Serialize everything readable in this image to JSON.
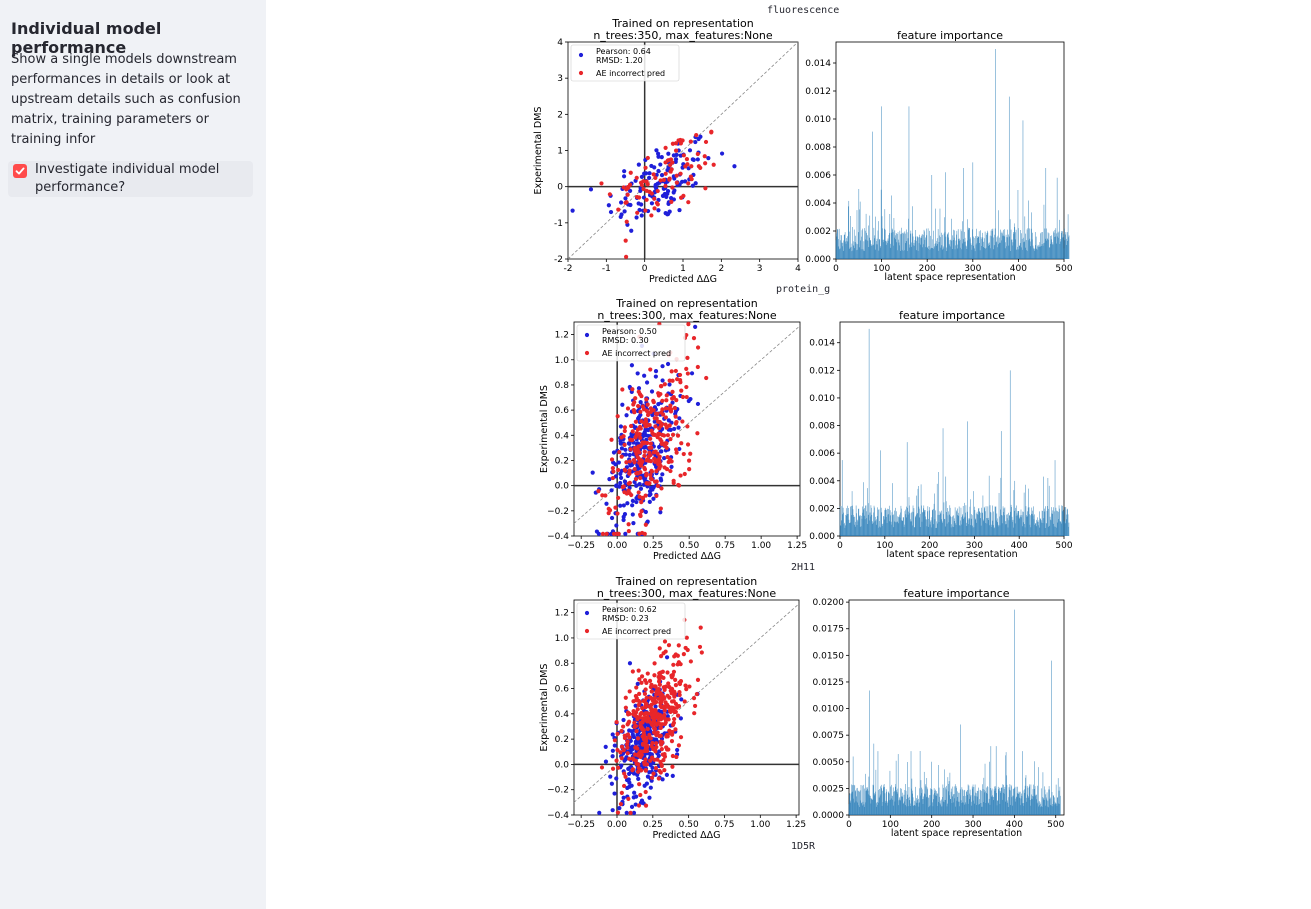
{
  "sidebar": {
    "title": "Individual model performance",
    "description": "Show a single models downstream performances in details or look at upstream details such as confusion matrix, training parameters or training infor",
    "checkbox": {
      "label": "Investigate individual model performance?",
      "checked": true
    }
  },
  "captions": [
    "fluorescence",
    "protein_g",
    "2H11",
    "1D5R"
  ],
  "colors": {
    "blue_points": "#1f1fd9",
    "red_points": "#e8262a",
    "bars": "#1f77b4",
    "accent": "#ff4b4b"
  },
  "chart_data": [
    {
      "type": "scatter",
      "title": "Trained on representation",
      "subtitle": "n_trees:350, max_features:None",
      "xlabel": "Predicted ΔΔG",
      "ylabel": "Experimental DMS",
      "xlim": [
        -2,
        4
      ],
      "ylim": [
        -2,
        4
      ],
      "xticks": [
        "-2",
        "-1",
        "0",
        "1",
        "2",
        "3",
        "4"
      ],
      "yticks": [
        "-2",
        "-1",
        "0",
        "1",
        "2",
        "3",
        "4"
      ],
      "legend": {
        "line1": "Pearson: 0.64",
        "line2": "RMSD: 1.20",
        "series": "AE incorrect pred",
        "placement": "top-left"
      },
      "blue_center": [
        0.4,
        0.1
      ],
      "blue_spread": [
        0.7,
        0.7
      ],
      "blue_count": 130,
      "red_center": [
        0.6,
        0.3
      ],
      "red_spread": [
        0.7,
        0.7
      ],
      "red_count": 90
    },
    {
      "type": "bar",
      "title": "feature importance",
      "xlabel": "latent space representation",
      "xlim": [
        0,
        500
      ],
      "ylim": [
        0,
        0.0155
      ],
      "xticks": [
        "0",
        "100",
        "200",
        "300",
        "400",
        "500"
      ],
      "yticks": [
        "0.000",
        "0.002",
        "0.004",
        "0.006",
        "0.008",
        "0.010",
        "0.012",
        "0.014"
      ],
      "peaks": [
        [
          50,
          0.005
        ],
        [
          80,
          0.0091
        ],
        [
          100,
          0.0109
        ],
        [
          160,
          0.0109
        ],
        [
          210,
          0.006
        ],
        [
          240,
          0.0062
        ],
        [
          280,
          0.0065
        ],
        [
          300,
          0.0069
        ],
        [
          350,
          0.015
        ],
        [
          380,
          0.0116
        ],
        [
          410,
          0.0099
        ],
        [
          460,
          0.0065
        ],
        [
          485,
          0.0058
        ]
      ]
    },
    {
      "type": "scatter",
      "title": "Trained on representation",
      "subtitle": "n_trees:300, max_features:None",
      "xlabel": "Predicted ΔΔG",
      "ylabel": "Experimental DMS",
      "xlim": [
        -0.3,
        1.27
      ],
      "ylim": [
        -0.4,
        1.3
      ],
      "xticks": [
        "−0.25",
        "0.00",
        "0.25",
        "0.50",
        "0.75",
        "1.00",
        "1.25"
      ],
      "yticks": [
        "−0.4",
        "−0.2",
        "0.0",
        "0.2",
        "0.4",
        "0.6",
        "0.8",
        "1.0",
        "1.2"
      ],
      "legend": {
        "line1": "Pearson: 0.50",
        "line2": "RMSD: 0.30",
        "series": "AE incorrect pred",
        "placement": "top-left"
      },
      "blue_center": [
        0.18,
        0.25
      ],
      "blue_spread": [
        0.12,
        0.35
      ],
      "blue_count": 300,
      "red_center": [
        0.25,
        0.35
      ],
      "red_spread": [
        0.15,
        0.38
      ],
      "red_count": 300
    },
    {
      "type": "bar",
      "title": "feature importance",
      "xlabel": "latent space representation",
      "xlim": [
        0,
        500
      ],
      "ylim": [
        0,
        0.0155
      ],
      "xticks": [
        "0",
        "100",
        "200",
        "300",
        "400",
        "500"
      ],
      "yticks": [
        "0.000",
        "0.002",
        "0.004",
        "0.006",
        "0.008",
        "0.010",
        "0.012",
        "0.014"
      ],
      "peaks": [
        [
          5,
          0.0055
        ],
        [
          65,
          0.015
        ],
        [
          90,
          0.0062
        ],
        [
          150,
          0.0068
        ],
        [
          230,
          0.0078
        ],
        [
          285,
          0.0083
        ],
        [
          360,
          0.0076
        ],
        [
          380,
          0.012
        ],
        [
          480,
          0.0055
        ]
      ]
    },
    {
      "type": "scatter",
      "title": "Trained on representation",
      "subtitle": "n_trees:300, max_features:None",
      "xlabel": "Predicted ΔΔG",
      "ylabel": "Experimental DMS",
      "xlim": [
        -0.3,
        1.27
      ],
      "ylim": [
        -0.4,
        1.3
      ],
      "xticks": [
        "−0.25",
        "0.00",
        "0.25",
        "0.50",
        "0.75",
        "1.00",
        "1.25"
      ],
      "yticks": [
        "−0.4",
        "−0.2",
        "0.0",
        "0.2",
        "0.4",
        "0.6",
        "0.8",
        "1.0",
        "1.2"
      ],
      "legend": {
        "line1": "Pearson: 0.62",
        "line2": "RMSD: 0.23",
        "series": "AE incorrect pred",
        "placement": "top-left"
      },
      "blue_center": [
        0.18,
        0.15
      ],
      "blue_spread": [
        0.1,
        0.25
      ],
      "blue_count": 300,
      "red_center": [
        0.25,
        0.35
      ],
      "red_spread": [
        0.12,
        0.28
      ],
      "red_count": 400
    },
    {
      "type": "bar",
      "title": "feature importance",
      "xlabel": "latent space representation",
      "xlim": [
        0,
        520
      ],
      "ylim": [
        0,
        0.0202
      ],
      "xticks": [
        "0",
        "100",
        "200",
        "300",
        "400",
        "500"
      ],
      "yticks": [
        "0.0000",
        "0.0025",
        "0.0050",
        "0.0075",
        "0.0100",
        "0.0125",
        "0.0150",
        "0.0175",
        "0.0200"
      ],
      "peaks": [
        [
          10,
          0.0055
        ],
        [
          50,
          0.0117
        ],
        [
          70,
          0.006
        ],
        [
          150,
          0.006
        ],
        [
          200,
          0.005
        ],
        [
          270,
          0.0085
        ],
        [
          340,
          0.005
        ],
        [
          400,
          0.0193
        ],
        [
          420,
          0.006
        ],
        [
          490,
          0.0145
        ]
      ]
    }
  ]
}
